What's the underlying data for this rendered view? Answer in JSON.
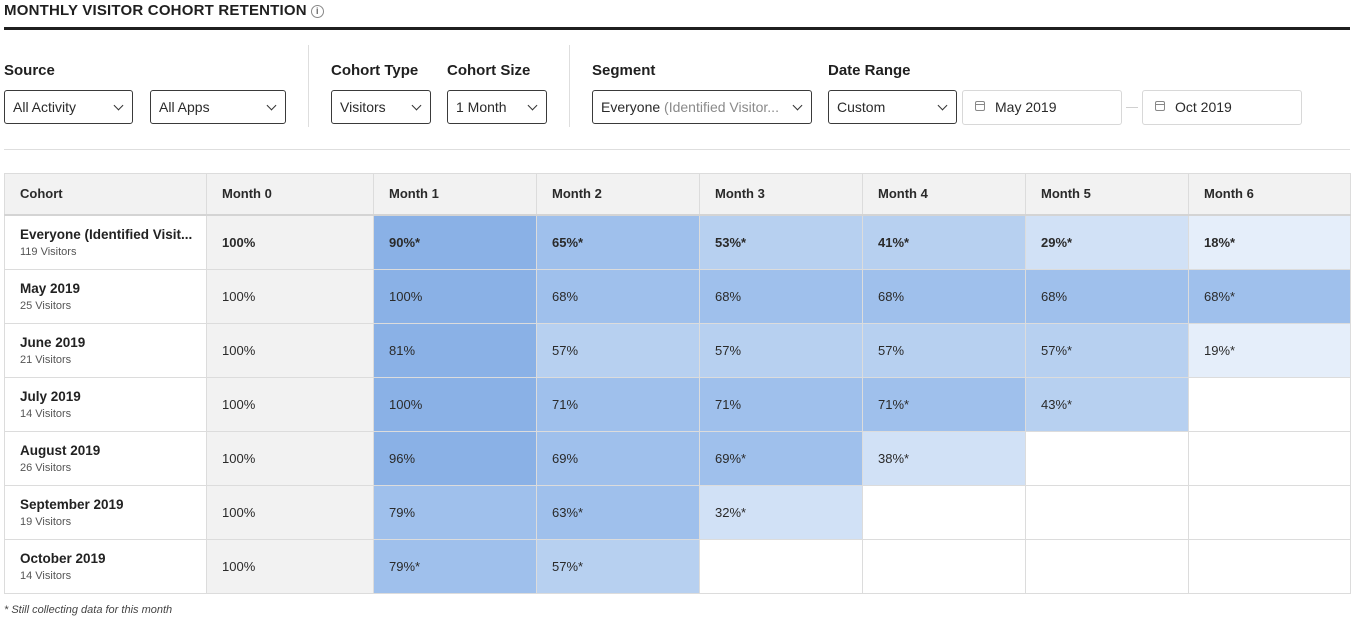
{
  "page": {
    "title": "MONTHLY VISITOR COHORT RETENTION",
    "info_icon": "info-icon"
  },
  "filters": {
    "source": {
      "label": "Source",
      "value1": "All Activity",
      "value2": "All Apps"
    },
    "cohort_type": {
      "label": "Cohort Type",
      "value": "Visitors"
    },
    "cohort_size": {
      "label": "Cohort Size",
      "value": "1 Month"
    },
    "segment": {
      "label": "Segment",
      "value_main": "Everyone",
      "value_muted": " (Identified Visitor..."
    },
    "date_range": {
      "label": "Date Range",
      "value": "Custom",
      "start": "May 2019",
      "end": "Oct 2019"
    }
  },
  "table": {
    "headers": [
      "Cohort",
      "Month 0",
      "Month 1",
      "Month 2",
      "Month 3",
      "Month 4",
      "Month 5",
      "Month 6"
    ],
    "rows": [
      {
        "name": "Everyone (Identified Visit...",
        "sub": "119 Visitors",
        "cells": [
          "100%",
          "90%*",
          "65%*",
          "53%*",
          "41%*",
          "29%*",
          "18%*"
        ]
      },
      {
        "name": "May 2019",
        "sub": "25 Visitors",
        "cells": [
          "100%",
          "100%",
          "68%",
          "68%",
          "68%",
          "68%",
          "68%*"
        ]
      },
      {
        "name": "June 2019",
        "sub": "21 Visitors",
        "cells": [
          "100%",
          "81%",
          "57%",
          "57%",
          "57%",
          "57%*",
          "19%*"
        ]
      },
      {
        "name": "July 2019",
        "sub": "14 Visitors",
        "cells": [
          "100%",
          "100%",
          "71%",
          "71%",
          "71%*",
          "43%*",
          ""
        ]
      },
      {
        "name": "August 2019",
        "sub": "26 Visitors",
        "cells": [
          "100%",
          "96%",
          "69%",
          "69%*",
          "38%*",
          "",
          ""
        ]
      },
      {
        "name": "September 2019",
        "sub": "19 Visitors",
        "cells": [
          "100%",
          "79%",
          "63%*",
          "32%*",
          "",
          "",
          ""
        ]
      },
      {
        "name": "October 2019",
        "sub": "14 Visitors",
        "cells": [
          "100%",
          "79%*",
          "57%*",
          "",
          "",
          "",
          ""
        ]
      }
    ],
    "shade_levels": [
      [
        0,
        5,
        4,
        3,
        3,
        2,
        1
      ],
      [
        0,
        5,
        4,
        4,
        4,
        4,
        4
      ],
      [
        0,
        5,
        3,
        3,
        3,
        3,
        1
      ],
      [
        0,
        5,
        4,
        4,
        4,
        3,
        0
      ],
      [
        0,
        5,
        4,
        4,
        2,
        0,
        0
      ],
      [
        0,
        4,
        4,
        2,
        0,
        0,
        0
      ],
      [
        0,
        4,
        3,
        0,
        0,
        0,
        0
      ]
    ],
    "colors": {
      "l5": "#8ab1e6",
      "l4": "#9fc0ec",
      "l3": "#b7d0f0",
      "l2": "#d1e1f6",
      "l1": "#e5eefa",
      "header_bg": "#f2f2f2"
    }
  },
  "footnote": "* Still collecting data for this month"
}
